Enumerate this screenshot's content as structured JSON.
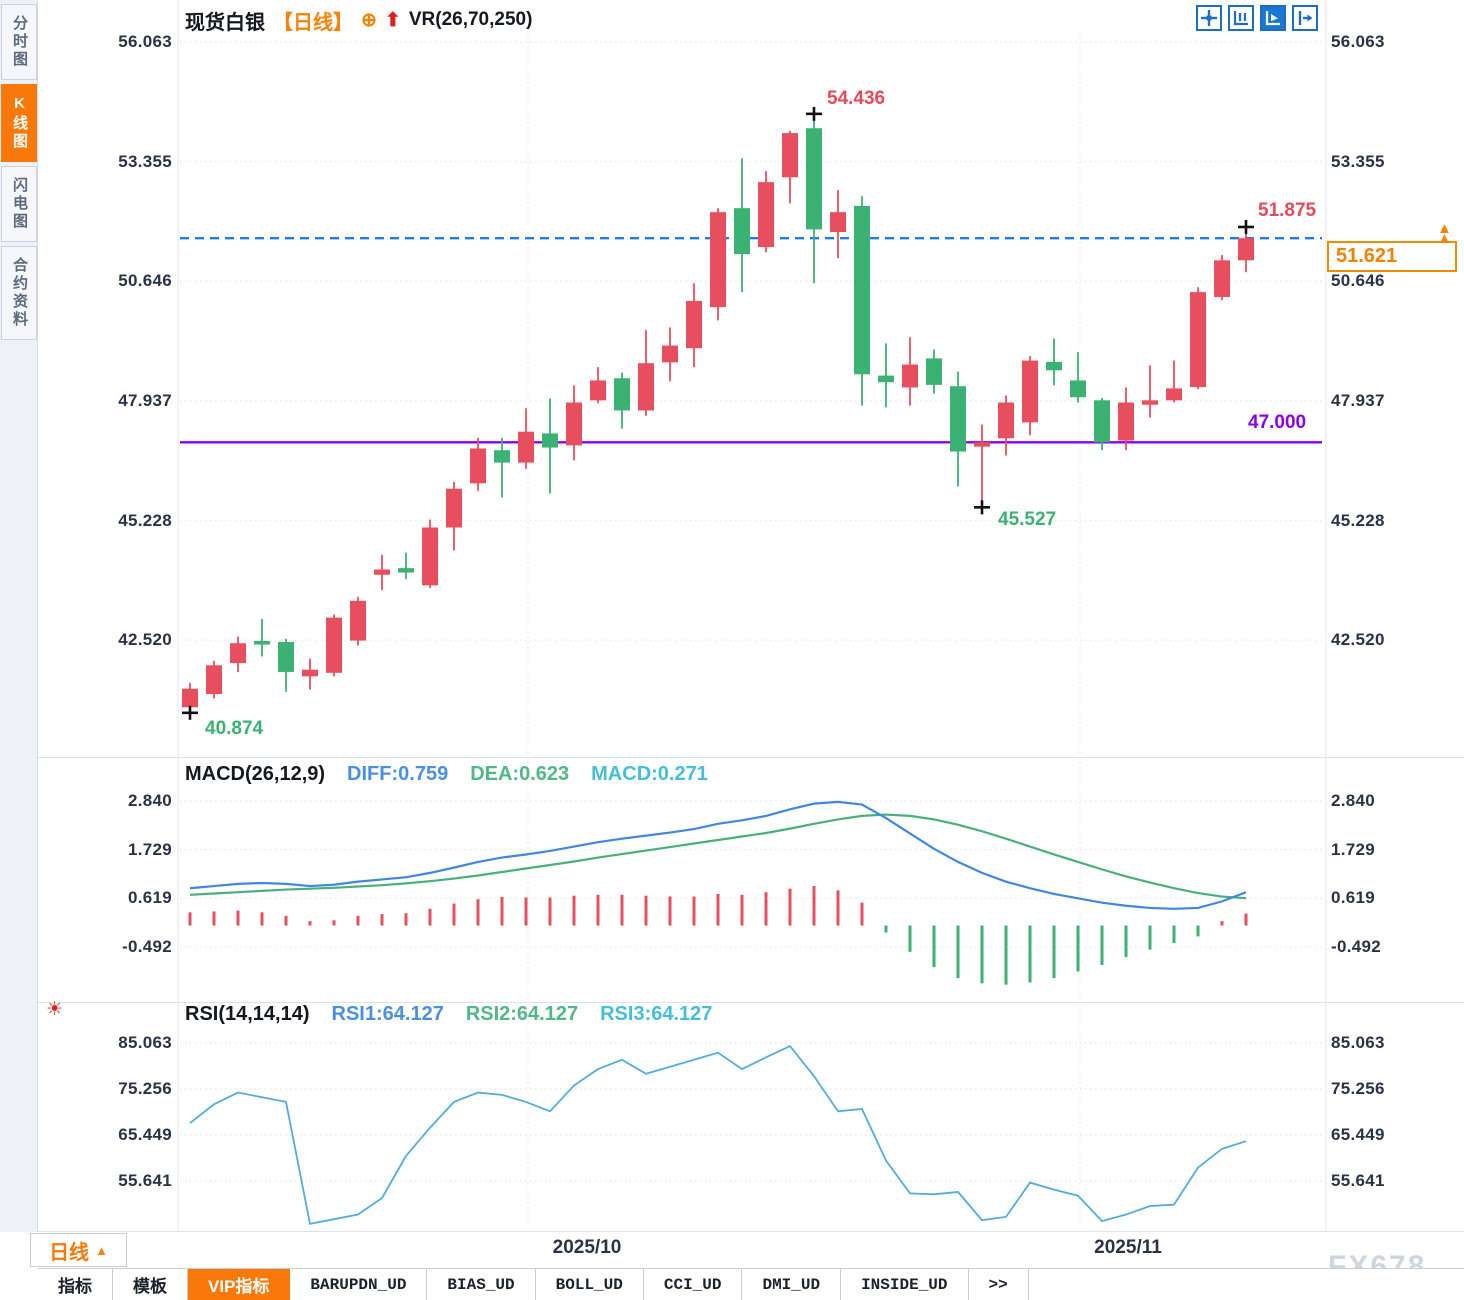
{
  "header": {
    "symbol": "现货白银",
    "period_tag": "【日线】",
    "target_icon_glyph": "⊕",
    "up_arrow_glyph": "⬆",
    "overlay_indicator": "VR(26,70,250)"
  },
  "sidebar": {
    "items": [
      {
        "label": "分时图",
        "active": false
      },
      {
        "label": "K线图",
        "active": true
      },
      {
        "label": "闪电图",
        "active": false
      },
      {
        "label": "合约资料",
        "active": false
      }
    ]
  },
  "toolbar": {
    "icons": [
      "pan-crosshair-icon",
      "fit-y-axis-icon",
      "auto-scale-icon",
      "jump-to-latest-icon"
    ],
    "active_icon": "auto-scale-icon"
  },
  "period_selector": {
    "label": "日线",
    "arrow": "▲"
  },
  "x_axis": {
    "labels": [
      "2025/10",
      "2025/11"
    ]
  },
  "bottom_tabs": [
    {
      "label": "指标",
      "active": false
    },
    {
      "label": "模板",
      "active": false
    },
    {
      "label": "VIP指标",
      "active": true
    },
    {
      "label": "BARUPDN_UD",
      "active": false
    },
    {
      "label": "BIAS_UD",
      "active": false
    },
    {
      "label": "BOLL_UD",
      "active": false
    },
    {
      "label": "CCI_UD",
      "active": false
    },
    {
      "label": "DMI_UD",
      "active": false
    },
    {
      "label": "INSIDE_UD",
      "active": false
    },
    {
      "label": ">>",
      "active": false
    }
  ],
  "watermark": "FX678",
  "rsi_hot_icon_glyph": "☀",
  "colors": {
    "up": "#e84f5e",
    "down": "#3bb173",
    "accent_orange": "#f8790a",
    "diff_line": "#3f87e0",
    "dea_line": "#47b07c",
    "rsi_line": "#52acdc",
    "current_line": "#1e7ce8",
    "support_line": "#8800ee",
    "grid": "#e9e9e9",
    "marker": "#111111"
  },
  "chart_data": [
    {
      "type": "candlestick",
      "title": "现货白银 日线",
      "y_ticks": [
        "56.063",
        "53.355",
        "50.646",
        "47.937",
        "45.228",
        "42.520"
      ],
      "x_labels": [
        "2025/10",
        "2025/11"
      ],
      "grid": true,
      "hlines": [
        {
          "value": 51.621,
          "style": "dashed",
          "color": "#1e7ce8",
          "label": "51.621"
        },
        {
          "value": 47.0,
          "style": "solid",
          "color": "#8800ee",
          "label": "47.000"
        }
      ],
      "annotations": {
        "high": "54.436",
        "last_high": "51.875",
        "low": "40.874",
        "mid_low": "45.527",
        "support": "47.000",
        "current": "51.621"
      },
      "extreme_markers": [
        {
          "i": 0,
          "on": "l"
        },
        {
          "i": 26,
          "on": "h"
        },
        {
          "i": 33,
          "on": "l"
        },
        {
          "i": 44,
          "on": "h"
        }
      ],
      "candles": [
        {
          "o": 41.0,
          "h": 41.55,
          "l": 40.874,
          "c": 41.42
        },
        {
          "o": 41.3,
          "h": 42.05,
          "l": 41.2,
          "c": 41.95
        },
        {
          "o": 42.0,
          "h": 42.6,
          "l": 41.8,
          "c": 42.45
        },
        {
          "o": 42.5,
          "h": 43.0,
          "l": 42.15,
          "c": 42.42
        },
        {
          "o": 42.48,
          "h": 42.55,
          "l": 41.35,
          "c": 41.8
        },
        {
          "o": 41.7,
          "h": 42.1,
          "l": 41.4,
          "c": 41.85
        },
        {
          "o": 41.78,
          "h": 43.1,
          "l": 41.7,
          "c": 43.03
        },
        {
          "o": 42.51,
          "h": 43.5,
          "l": 42.4,
          "c": 43.41
        },
        {
          "o": 44.0,
          "h": 44.45,
          "l": 43.65,
          "c": 44.12
        },
        {
          "o": 44.15,
          "h": 44.5,
          "l": 43.9,
          "c": 44.05
        },
        {
          "o": 43.76,
          "h": 45.25,
          "l": 43.7,
          "c": 45.07
        },
        {
          "o": 45.07,
          "h": 46.1,
          "l": 44.55,
          "c": 45.95
        },
        {
          "o": 46.07,
          "h": 47.1,
          "l": 45.9,
          "c": 46.86
        },
        {
          "o": 46.82,
          "h": 47.1,
          "l": 45.75,
          "c": 46.54
        },
        {
          "o": 46.54,
          "h": 47.77,
          "l": 46.4,
          "c": 47.24
        },
        {
          "o": 47.2,
          "h": 47.99,
          "l": 45.84,
          "c": 46.88
        },
        {
          "o": 46.93,
          "h": 48.29,
          "l": 46.59,
          "c": 47.9
        },
        {
          "o": 47.95,
          "h": 48.7,
          "l": 47.88,
          "c": 48.4
        },
        {
          "o": 48.45,
          "h": 48.58,
          "l": 47.31,
          "c": 47.72
        },
        {
          "o": 47.72,
          "h": 49.54,
          "l": 47.6,
          "c": 48.79
        },
        {
          "o": 48.81,
          "h": 49.6,
          "l": 48.38,
          "c": 49.19
        },
        {
          "o": 49.13,
          "h": 50.6,
          "l": 48.7,
          "c": 50.2
        },
        {
          "o": 50.06,
          "h": 52.3,
          "l": 49.76,
          "c": 52.21
        },
        {
          "o": 52.3,
          "h": 53.43,
          "l": 50.4,
          "c": 51.26
        },
        {
          "o": 51.42,
          "h": 53.14,
          "l": 51.3,
          "c": 52.89
        },
        {
          "o": 53.0,
          "h": 54.05,
          "l": 52.41,
          "c": 54.0
        },
        {
          "o": 54.11,
          "h": 54.436,
          "l": 50.6,
          "c": 51.82
        },
        {
          "o": 51.76,
          "h": 52.71,
          "l": 51.17,
          "c": 52.21
        },
        {
          "o": 52.35,
          "h": 52.57,
          "l": 47.83,
          "c": 48.54
        },
        {
          "o": 48.51,
          "h": 49.24,
          "l": 47.79,
          "c": 48.36
        },
        {
          "o": 48.24,
          "h": 49.38,
          "l": 47.83,
          "c": 48.76
        },
        {
          "o": 48.9,
          "h": 49.1,
          "l": 48.1,
          "c": 48.3
        },
        {
          "o": 48.27,
          "h": 48.6,
          "l": 46.0,
          "c": 46.79
        },
        {
          "o": 46.9,
          "h": 47.4,
          "l": 45.527,
          "c": 47.0
        },
        {
          "o": 47.09,
          "h": 48.06,
          "l": 46.7,
          "c": 47.9
        },
        {
          "o": 47.45,
          "h": 48.95,
          "l": 47.16,
          "c": 48.85
        },
        {
          "o": 48.82,
          "h": 49.35,
          "l": 48.29,
          "c": 48.63
        },
        {
          "o": 48.4,
          "h": 49.04,
          "l": 47.9,
          "c": 48.02
        },
        {
          "o": 47.95,
          "h": 48.0,
          "l": 46.82,
          "c": 47.0
        },
        {
          "o": 47.04,
          "h": 48.24,
          "l": 46.82,
          "c": 47.9
        },
        {
          "o": 47.85,
          "h": 48.74,
          "l": 47.56,
          "c": 47.95
        },
        {
          "o": 47.95,
          "h": 48.85,
          "l": 47.9,
          "c": 48.22
        },
        {
          "o": 48.25,
          "h": 50.51,
          "l": 48.2,
          "c": 50.4
        },
        {
          "o": 50.29,
          "h": 51.24,
          "l": 50.22,
          "c": 51.12
        },
        {
          "o": 51.12,
          "h": 51.875,
          "l": 50.85,
          "c": 51.621
        }
      ]
    },
    {
      "type": "macd",
      "title": "MACD(26,12,9)",
      "diff_label": "DIFF:0.759",
      "dea_label": "DEA:0.623",
      "macd_label": "MACD:0.271",
      "y_ticks": [
        "2.840",
        "1.729",
        "0.619",
        "-0.492"
      ],
      "diff": [
        0.85,
        0.9,
        0.95,
        0.97,
        0.95,
        0.9,
        0.93,
        1.0,
        1.05,
        1.1,
        1.2,
        1.32,
        1.45,
        1.55,
        1.62,
        1.7,
        1.8,
        1.9,
        1.98,
        2.05,
        2.12,
        2.2,
        2.32,
        2.4,
        2.5,
        2.65,
        2.78,
        2.82,
        2.76,
        2.45,
        2.1,
        1.75,
        1.45,
        1.2,
        1.0,
        0.85,
        0.72,
        0.62,
        0.52,
        0.45,
        0.4,
        0.38,
        0.4,
        0.55,
        0.759
      ],
      "dea": [
        0.7,
        0.73,
        0.76,
        0.79,
        0.82,
        0.84,
        0.86,
        0.89,
        0.92,
        0.96,
        1.01,
        1.07,
        1.14,
        1.22,
        1.3,
        1.38,
        1.46,
        1.55,
        1.63,
        1.71,
        1.79,
        1.87,
        1.95,
        2.03,
        2.11,
        2.21,
        2.32,
        2.42,
        2.5,
        2.53,
        2.5,
        2.42,
        2.3,
        2.15,
        1.98,
        1.8,
        1.62,
        1.45,
        1.28,
        1.12,
        0.98,
        0.85,
        0.74,
        0.66,
        0.623
      ],
      "hist": [
        0.3,
        0.32,
        0.34,
        0.3,
        0.22,
        0.1,
        0.12,
        0.22,
        0.26,
        0.28,
        0.38,
        0.5,
        0.6,
        0.65,
        0.64,
        0.64,
        0.68,
        0.7,
        0.7,
        0.68,
        0.66,
        0.66,
        0.72,
        0.7,
        0.76,
        0.84,
        0.9,
        0.8,
        0.52,
        -0.16,
        -0.6,
        -0.95,
        -1.2,
        -1.32,
        -1.35,
        -1.3,
        -1.2,
        -1.05,
        -0.9,
        -0.72,
        -0.55,
        -0.4,
        -0.25,
        0.1,
        0.271
      ]
    },
    {
      "type": "line",
      "title": "RSI(14,14,14)",
      "rsi1_label": "RSI1:64.127",
      "rsi2_label": "RSI2:64.127",
      "rsi3_label": "RSI3:64.127",
      "y_ticks": [
        "85.063",
        "75.256",
        "65.449",
        "55.641"
      ],
      "values": [
        68,
        72,
        74.5,
        73.5,
        72.5,
        46.5,
        47.5,
        48.5,
        52,
        61,
        67,
        72.5,
        74.5,
        74,
        72.5,
        70.5,
        76,
        79.5,
        81.5,
        78.5,
        80,
        81.5,
        83,
        79.5,
        82,
        84.4,
        78,
        70.5,
        71,
        60,
        53,
        52.8,
        53.3,
        47.3,
        48,
        55.3,
        53.8,
        52.5,
        47.1,
        48.5,
        50.3,
        50.6,
        58.5,
        62.5,
        64.127
      ]
    }
  ]
}
